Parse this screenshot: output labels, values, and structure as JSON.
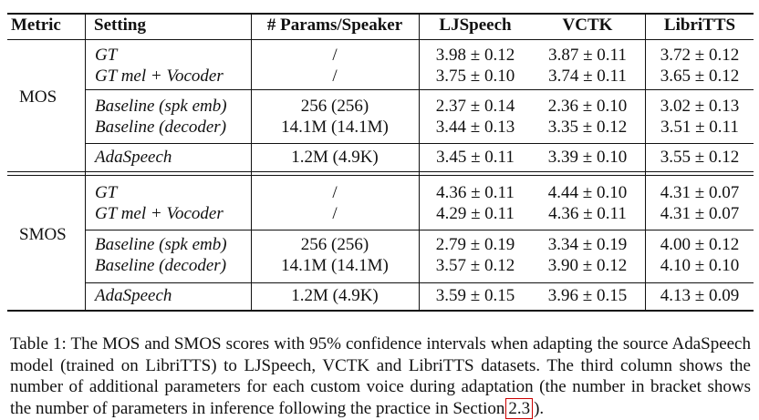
{
  "table": {
    "headers": [
      "Metric",
      "Setting",
      "# Params/Speaker",
      "LJSpeech",
      "VCTK",
      "LibriTTS"
    ],
    "sections": [
      {
        "metric": "MOS",
        "groups": [
          [
            {
              "setting": "GT",
              "params": "/",
              "lj": "3.98 ± 0.12",
              "vctk": "3.87 ± 0.11",
              "libri": "3.72 ± 0.12"
            },
            {
              "setting": "GT mel + Vocoder",
              "params": "/",
              "lj": "3.75 ± 0.10",
              "vctk": "3.74 ± 0.11",
              "libri": "3.65 ± 0.12"
            }
          ],
          [
            {
              "setting": "Baseline (spk emb)",
              "params": "256 (256)",
              "lj": "2.37 ± 0.14",
              "vctk": "2.36 ± 0.10",
              "libri": "3.02 ± 0.13"
            },
            {
              "setting": "Baseline (decoder)",
              "params": "14.1M (14.1M)",
              "lj": "3.44 ± 0.13",
              "vctk": "3.35 ± 0.12",
              "libri": "3.51 ± 0.11"
            }
          ],
          [
            {
              "setting": "AdaSpeech",
              "params": "1.2M (4.9K)",
              "lj": "3.45 ± 0.11",
              "vctk": "3.39 ± 0.10",
              "libri": "3.55 ± 0.12"
            }
          ]
        ]
      },
      {
        "metric": "SMOS",
        "groups": [
          [
            {
              "setting": "GT",
              "params": "/",
              "lj": "4.36 ± 0.11",
              "vctk": "4.44 ± 0.10",
              "libri": "4.31 ± 0.07"
            },
            {
              "setting": "GT mel + Vocoder",
              "params": "/",
              "lj": "4.29 ± 0.11",
              "vctk": "4.36 ± 0.11",
              "libri": "4.31 ± 0.07"
            }
          ],
          [
            {
              "setting": "Baseline (spk emb)",
              "params": "256 (256)",
              "lj": "2.79 ± 0.19",
              "vctk": "3.34 ± 0.19",
              "libri": "4.00 ± 0.12"
            },
            {
              "setting": "Baseline (decoder)",
              "params": "14.1M (14.1M)",
              "lj": "3.57 ± 0.12",
              "vctk": "3.90 ± 0.12",
              "libri": "4.10 ± 0.10"
            }
          ],
          [
            {
              "setting": "AdaSpeech",
              "params": "1.2M (4.9K)",
              "lj": "3.59 ± 0.15",
              "vctk": "3.96 ± 0.15",
              "libri": "4.13 ± 0.09"
            }
          ]
        ]
      }
    ]
  },
  "caption": {
    "lead": "Table 1: The MOS and SMOS scores with 95% confidence intervals when adapting the source AdaSpeech model (trained on LibriTTS) to LJSpeech, VCTK and LibriTTS datasets. The third column shows the number of additional parameters for each custom voice during adaptation (the number in bracket shows the number of parameters in inference following the practice in Section",
    "ref": "2.3",
    "tail": ")."
  }
}
